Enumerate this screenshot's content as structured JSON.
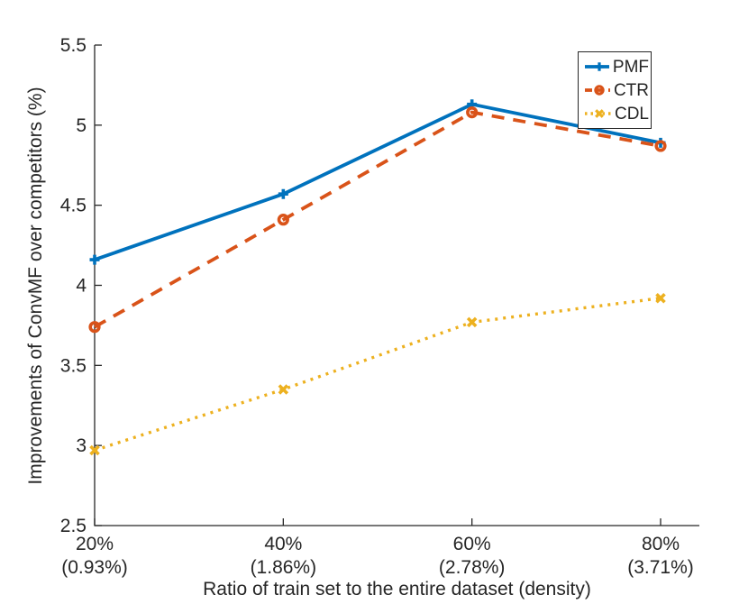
{
  "figure": {
    "background": "#ffffff",
    "axis_color": "#262626",
    "text_color": "#262626"
  },
  "chart_data": {
    "type": "line",
    "title": "",
    "xlabel": "Ratio of train set to the entire dataset (density)",
    "ylabel": "Improvements of ConvMF over competitors (%)",
    "ylim": [
      2.5,
      5.5
    ],
    "grid": false,
    "legend_position": "top-right",
    "x_ticks": [
      {
        "value": 20,
        "label": "20%",
        "sub_label": "(0.93%)"
      },
      {
        "value": 40,
        "label": "40%",
        "sub_label": "(1.86%)"
      },
      {
        "value": 60,
        "label": "60%",
        "sub_label": "(2.78%)"
      },
      {
        "value": 80,
        "label": "80%",
        "sub_label": "(3.71%)"
      }
    ],
    "y_ticks": [
      {
        "value": 5.5,
        "label": "5.5"
      },
      {
        "value": 5.0,
        "label": "5"
      },
      {
        "value": 4.5,
        "label": "4.5"
      },
      {
        "value": 4.0,
        "label": "4"
      },
      {
        "value": 3.5,
        "label": "3.5"
      },
      {
        "value": 3.0,
        "label": "3"
      },
      {
        "value": 2.5,
        "label": "2.5"
      }
    ],
    "series": [
      {
        "name": "PMF",
        "color": "#0072BD",
        "line_style": "solid",
        "marker": "plus",
        "values": [
          4.16,
          4.57,
          5.13,
          4.89
        ]
      },
      {
        "name": "CTR",
        "color": "#D95319",
        "line_style": "dashed",
        "marker": "circle",
        "values": [
          3.74,
          4.41,
          5.08,
          4.87
        ]
      },
      {
        "name": "CDL",
        "color": "#EDB120",
        "line_style": "dotted",
        "marker": "x",
        "values": [
          2.97,
          3.35,
          3.77,
          3.92
        ]
      }
    ]
  }
}
